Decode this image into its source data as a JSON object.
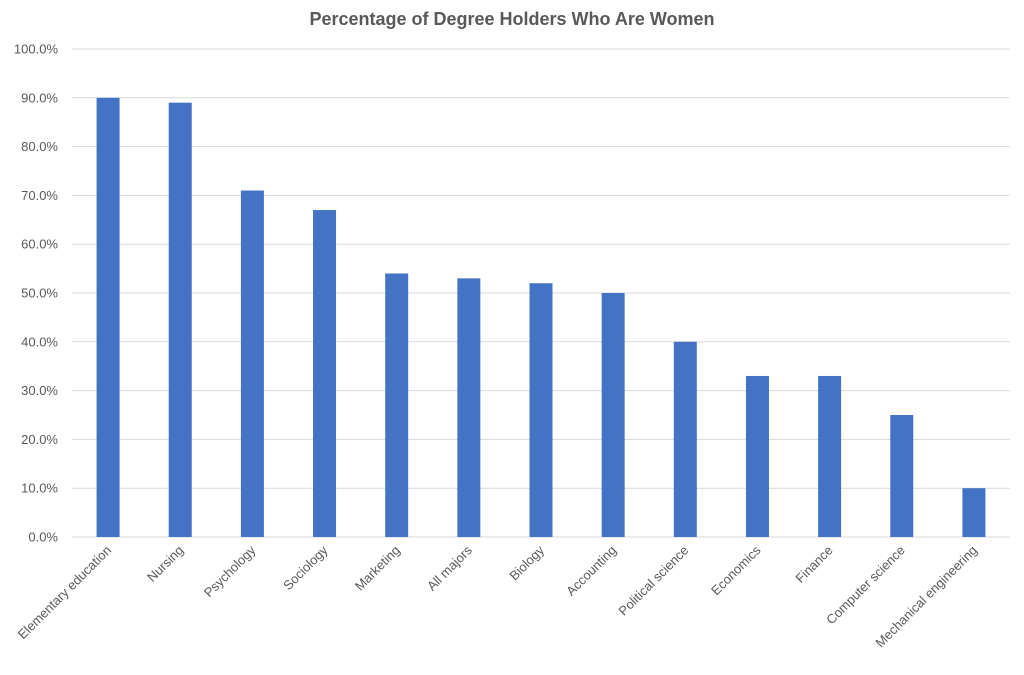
{
  "chart_data": {
    "type": "bar",
    "title": "Percentage of Degree Holders Who Are Women",
    "xlabel": "",
    "ylabel": "",
    "categories": [
      "Elementary education",
      "Nursing",
      "Psychology",
      "Sociology",
      "Marketing",
      "All majors",
      "Biology",
      "Accounting",
      "Political science",
      "Economics",
      "Finance",
      "Computer science",
      "Mechanical engineering"
    ],
    "values": [
      90,
      89,
      71,
      67,
      54,
      53,
      52,
      50,
      40,
      33,
      33,
      25,
      10
    ],
    "ylim": [
      0,
      100
    ],
    "yticks": [
      0,
      10,
      20,
      30,
      40,
      50,
      60,
      70,
      80,
      90,
      100
    ],
    "ytick_labels": [
      "0.0%",
      "10.0%",
      "20.0%",
      "30.0%",
      "40.0%",
      "50.0%",
      "60.0%",
      "70.0%",
      "80.0%",
      "90.0%",
      "100.0%"
    ],
    "grid": true,
    "legend": "none",
    "colors": {
      "bar": "#4472C4",
      "grid": "#D9D9D9",
      "text": "#595959"
    }
  }
}
